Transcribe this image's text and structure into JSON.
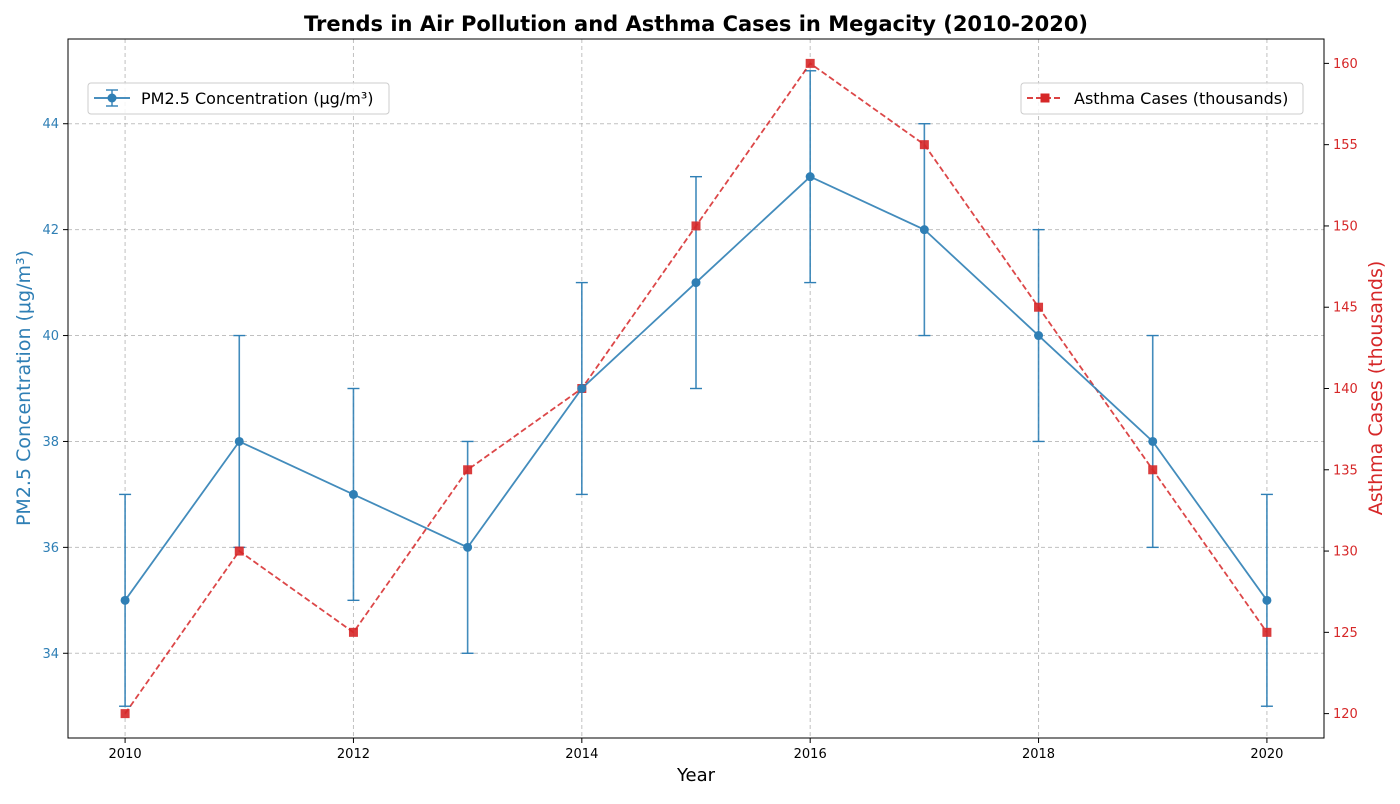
{
  "chart_data": {
    "type": "line",
    "title": "Trends in Air Pollution and Asthma Cases in Megacity (2010-2020)",
    "xlabel": "Year",
    "x": [
      2010,
      2011,
      2012,
      2013,
      2014,
      2015,
      2016,
      2017,
      2018,
      2019,
      2020
    ],
    "xlim": [
      2009.5,
      2020.5
    ],
    "x_ticks": [
      2010,
      2012,
      2014,
      2016,
      2018,
      2020
    ],
    "grid": true,
    "left_axis": {
      "label": "PM2.5 Concentration (μg/m³)",
      "color": "#2f7fb5",
      "ylim": [
        32.4,
        45.6
      ],
      "ticks": [
        34,
        36,
        38,
        40,
        42,
        44
      ]
    },
    "right_axis": {
      "label": "Asthma Cases (thousands)",
      "color": "#d62728",
      "ylim": [
        118.5,
        161.5
      ],
      "ticks": [
        120,
        125,
        130,
        135,
        140,
        145,
        150,
        155,
        160
      ]
    },
    "series": [
      {
        "name": "PM2.5 Concentration (μg/m³)",
        "axis": "left",
        "color": "#2f7fb5",
        "line_style": "solid",
        "marker": "circle",
        "values": [
          35,
          38,
          37,
          36,
          39,
          41,
          43,
          42,
          40,
          38,
          35
        ],
        "error": [
          2,
          2,
          2,
          2,
          2,
          2,
          2,
          2,
          2,
          2,
          2
        ],
        "legend_position": "top-left"
      },
      {
        "name": "Asthma Cases (thousands)",
        "axis": "right",
        "color": "#d62728",
        "line_style": "dashed",
        "marker": "square",
        "values": [
          120,
          130,
          125,
          135,
          140,
          150,
          160,
          155,
          145,
          135,
          125
        ],
        "legend_position": "top-right"
      }
    ]
  }
}
